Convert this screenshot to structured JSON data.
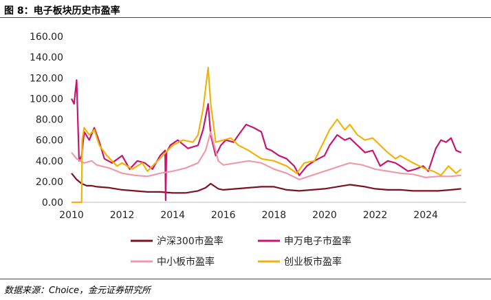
{
  "figure": {
    "title": "图 8：电子板块历史市盈率",
    "source": "数据来源：Choice，金元证券研究所"
  },
  "colors": {
    "rule": "#c0005a",
    "axis": "#bbbbbb"
  },
  "chart_data": {
    "type": "line",
    "title": "",
    "xlabel": "",
    "ylabel": "",
    "ylim": [
      0,
      160
    ],
    "xlim": [
      2010.0,
      2025.6
    ],
    "grid": false,
    "legend": "bottom",
    "y_ticks": [
      "0.00",
      "20.00",
      "40.00",
      "60.00",
      "80.00",
      "100.00",
      "120.00",
      "140.00",
      "160.00"
    ],
    "y_tick_values": [
      0,
      20,
      40,
      60,
      80,
      100,
      120,
      140,
      160
    ],
    "x_ticks": [
      "2010",
      "2012",
      "2014",
      "2016",
      "2018",
      "2020",
      "2022",
      "2024"
    ],
    "x_tick_values": [
      2010,
      2012,
      2014,
      2016,
      2018,
      2020,
      2022,
      2024
    ],
    "series": [
      {
        "name": "沪深300市盈率",
        "color": "#7b1222",
        "x": [
          2010.0,
          2010.2,
          2010.4,
          2010.6,
          2010.8,
          2011.0,
          2011.5,
          2012.0,
          2012.5,
          2013.0,
          2013.5,
          2014.0,
          2014.5,
          2015.0,
          2015.3,
          2015.5,
          2015.8,
          2016.0,
          2016.5,
          2017.0,
          2017.5,
          2018.0,
          2018.5,
          2019.0,
          2019.5,
          2020.0,
          2020.5,
          2021.0,
          2021.3,
          2021.6,
          2022.0,
          2022.5,
          2023.0,
          2023.5,
          2024.0,
          2024.5,
          2025.0,
          2025.4
        ],
        "values": [
          28,
          22,
          18,
          16,
          16,
          15,
          14,
          12,
          11,
          10,
          10,
          9,
          9,
          11,
          14,
          18,
          13,
          12,
          13,
          14,
          15,
          15,
          12,
          11,
          12,
          13,
          15,
          17,
          16,
          15,
          13,
          12,
          12,
          11,
          11,
          11,
          12,
          13
        ]
      },
      {
        "name": "申万电子市盈率",
        "color": "#c8146e",
        "x": [
          2010.0,
          2010.1,
          2010.2,
          2010.3,
          2010.4,
          2010.5,
          2010.7,
          2010.9,
          2011.1,
          2011.3,
          2011.6,
          2012.0,
          2012.3,
          2012.6,
          2012.9,
          2013.2,
          2013.5,
          2013.7,
          2013.72,
          2013.75,
          2013.9,
          2014.2,
          2014.6,
          2015.0,
          2015.2,
          2015.4,
          2015.5,
          2015.7,
          2015.9,
          2016.1,
          2016.4,
          2016.6,
          2016.9,
          2017.2,
          2017.5,
          2017.7,
          2017.9,
          2018.2,
          2018.5,
          2018.8,
          2019.0,
          2019.3,
          2019.6,
          2020.0,
          2020.2,
          2020.5,
          2020.8,
          2021.0,
          2021.3,
          2021.6,
          2021.9,
          2022.2,
          2022.5,
          2022.8,
          2023.0,
          2023.3,
          2023.6,
          2023.9,
          2024.1,
          2024.4,
          2024.6,
          2024.8,
          2025.0,
          2025.2,
          2025.4
        ],
        "values": [
          100,
          95,
          118,
          40,
          45,
          68,
          60,
          72,
          58,
          42,
          38,
          45,
          32,
          40,
          38,
          32,
          45,
          50,
          2,
          48,
          55,
          60,
          52,
          55,
          70,
          95,
          65,
          45,
          55,
          60,
          58,
          65,
          75,
          72,
          68,
          52,
          50,
          45,
          42,
          35,
          26,
          35,
          40,
          45,
          55,
          65,
          60,
          62,
          55,
          48,
          50,
          35,
          40,
          38,
          35,
          30,
          32,
          35,
          30,
          52,
          60,
          58,
          62,
          50,
          48
        ]
      },
      {
        "name": "中小板市盈率",
        "color": "#ef9aa8",
        "x": [
          2010.0,
          2010.2,
          2010.5,
          2010.8,
          2011.0,
          2011.5,
          2012.0,
          2012.5,
          2013.0,
          2013.5,
          2014.0,
          2014.5,
          2015.0,
          2015.3,
          2015.5,
          2015.8,
          2016.0,
          2016.5,
          2017.0,
          2017.5,
          2018.0,
          2018.5,
          2019.0,
          2019.5,
          2020.0,
          2020.5,
          2021.0,
          2021.5,
          2022.0,
          2022.5,
          2023.0,
          2023.5,
          2024.0,
          2024.5,
          2025.0,
          2025.4
        ],
        "values": [
          48,
          42,
          38,
          40,
          36,
          33,
          28,
          26,
          25,
          28,
          30,
          33,
          38,
          50,
          68,
          40,
          36,
          38,
          40,
          38,
          32,
          28,
          22,
          26,
          30,
          34,
          38,
          36,
          32,
          30,
          28,
          27,
          24,
          25,
          25,
          26
        ]
      },
      {
        "name": "创业板市盈率",
        "color": "#f2b20a",
        "x": [
          2010.0,
          2010.4,
          2010.42,
          2010.5,
          2010.7,
          2010.9,
          2011.1,
          2011.4,
          2011.8,
          2012.0,
          2012.4,
          2012.8,
          2013.0,
          2013.4,
          2013.8,
          2014.0,
          2014.4,
          2014.8,
          2015.0,
          2015.2,
          2015.4,
          2015.5,
          2015.7,
          2016.0,
          2016.3,
          2016.6,
          2017.0,
          2017.5,
          2018.0,
          2018.5,
          2018.9,
          2019.2,
          2019.6,
          2020.0,
          2020.2,
          2020.5,
          2020.8,
          2021.0,
          2021.3,
          2021.6,
          2021.9,
          2022.2,
          2022.5,
          2022.8,
          2023.0,
          2023.5,
          2024.0,
          2024.3,
          2024.6,
          2024.9,
          2025.2,
          2025.4
        ],
        "values": [
          0,
          0,
          60,
          72,
          65,
          70,
          55,
          45,
          35,
          38,
          32,
          38,
          30,
          40,
          50,
          55,
          60,
          58,
          65,
          90,
          130,
          95,
          58,
          60,
          62,
          55,
          50,
          42,
          40,
          35,
          28,
          38,
          40,
          60,
          70,
          80,
          70,
          75,
          65,
          60,
          62,
          55,
          48,
          42,
          45,
          38,
          32,
          30,
          26,
          35,
          28,
          32
        ]
      }
    ]
  }
}
